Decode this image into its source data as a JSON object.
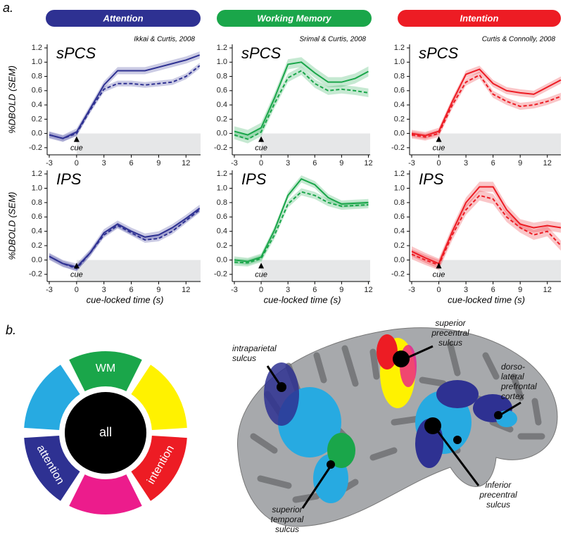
{
  "panel_labels": [
    "a.",
    "b."
  ],
  "columns": [
    {
      "title": "Attention",
      "color": "#2e3192",
      "citation": "Ikkai & Curtis, 2008"
    },
    {
      "title": "Working Memory",
      "color": "#1aa64a",
      "citation": "Srimal & Curtis, 2008"
    },
    {
      "title": "Intention",
      "color": "#ed1c24",
      "citation": "Curtis & Connolly, 2008"
    }
  ],
  "chart_data": [
    {
      "type": "line",
      "title": "sPCS",
      "annotation": "cue",
      "ylabel": "%DBOLD (SEM)",
      "x": [
        -3,
        -1.5,
        0,
        1.5,
        3,
        4.5,
        6,
        7.5,
        9,
        10.5,
        12,
        13.5
      ],
      "xlim": [
        -3,
        13.6
      ],
      "xticks": [
        -3,
        0,
        3,
        6,
        9,
        12
      ],
      "ylim": [
        -0.3,
        1.25
      ],
      "yticks": [
        -0.2,
        {
          "value": 0,
          "label": "0.0"
        },
        0.2,
        0.4,
        0.6,
        0.8,
        {
          "value": 1,
          "label": "1.0"
        },
        1.2
      ],
      "series": [
        {
          "color": "#2e3192",
          "style": "solid",
          "sem": 0.05,
          "values": [
            -0.02,
            -0.07,
            0.02,
            0.35,
            0.68,
            0.88,
            0.88,
            0.88,
            0.93,
            0.98,
            1.03,
            1.1
          ]
        },
        {
          "color": "#2e3192",
          "style": "dashed",
          "sem": 0.04,
          "values": [
            -0.02,
            -0.07,
            0.0,
            0.33,
            0.62,
            0.7,
            0.7,
            0.68,
            0.7,
            0.72,
            0.8,
            0.95
          ]
        }
      ]
    },
    {
      "type": "line",
      "title": "sPCS",
      "annotation": "cue",
      "x": [
        -3,
        -1.5,
        0,
        1.5,
        3,
        4.5,
        6,
        7.5,
        9,
        10.5,
        12
      ],
      "xlim": [
        -3,
        12.2
      ],
      "xticks": [
        -3,
        0,
        3,
        6,
        9,
        12
      ],
      "ylim": [
        -0.3,
        1.25
      ],
      "yticks": [
        -0.2,
        {
          "value": 0,
          "label": "0.0"
        },
        0.2,
        0.4,
        0.6,
        0.8,
        {
          "value": 1,
          "label": "1.0"
        },
        1.2
      ],
      "series": [
        {
          "color": "#1aa64a",
          "style": "solid",
          "sem": 0.07,
          "values": [
            0.03,
            -0.02,
            0.08,
            0.5,
            0.97,
            1.0,
            0.85,
            0.72,
            0.72,
            0.77,
            0.87
          ]
        },
        {
          "color": "#1aa64a",
          "style": "dashed",
          "sem": 0.06,
          "values": [
            -0.02,
            -0.08,
            0.02,
            0.42,
            0.78,
            0.88,
            0.7,
            0.6,
            0.62,
            0.6,
            0.57
          ]
        }
      ]
    },
    {
      "type": "line",
      "title": "sPCS",
      "annotation": "cue",
      "x": [
        -3,
        -1.5,
        0,
        1.5,
        3,
        4.5,
        6,
        7.5,
        9,
        10.5,
        12,
        13.5
      ],
      "xlim": [
        -3,
        13.5
      ],
      "xticks": [
        -3,
        0,
        3,
        6,
        9,
        12
      ],
      "ylim": [
        -0.3,
        1.25
      ],
      "yticks": [
        -0.2,
        {
          "value": 0,
          "label": "0.0"
        },
        0.2,
        0.4,
        0.6,
        0.8,
        {
          "value": 1,
          "label": "1.0"
        },
        1.2
      ],
      "series": [
        {
          "color": "#ed1c24",
          "style": "solid",
          "sem": 0.05,
          "values": [
            0.0,
            -0.03,
            0.03,
            0.45,
            0.83,
            0.9,
            0.7,
            0.6,
            0.57,
            0.55,
            0.65,
            0.75
          ]
        },
        {
          "color": "#ed1c24",
          "style": "dashed",
          "sem": 0.05,
          "values": [
            -0.02,
            -0.05,
            0.0,
            0.4,
            0.72,
            0.82,
            0.55,
            0.45,
            0.38,
            0.4,
            0.45,
            0.52
          ]
        }
      ]
    },
    {
      "type": "line",
      "title": "IPS",
      "annotation": "cue",
      "ylabel": "%DBOLD (SEM)",
      "xlabel": "cue-locked time (s)",
      "x": [
        -3,
        -1.5,
        0,
        1.5,
        3,
        4.5,
        6,
        7.5,
        9,
        10.5,
        12,
        13.5
      ],
      "xlim": [
        -3,
        13.6
      ],
      "xticks": [
        -3,
        0,
        3,
        6,
        9,
        12
      ],
      "ylim": [
        -0.3,
        1.25
      ],
      "yticks": [
        -0.2,
        {
          "value": 0,
          "label": "0.0"
        },
        0.2,
        0.4,
        0.6,
        0.8,
        {
          "value": 1,
          "label": "1.0"
        },
        1.2
      ],
      "series": [
        {
          "color": "#2e3192",
          "style": "solid",
          "sem": 0.05,
          "values": [
            0.05,
            -0.05,
            -0.1,
            0.1,
            0.38,
            0.5,
            0.4,
            0.32,
            0.35,
            0.45,
            0.58,
            0.72
          ]
        },
        {
          "color": "#2e3192",
          "style": "dashed",
          "sem": 0.04,
          "values": [
            0.05,
            -0.05,
            -0.12,
            0.1,
            0.35,
            0.48,
            0.38,
            0.28,
            0.3,
            0.4,
            0.55,
            0.7
          ]
        }
      ]
    },
    {
      "type": "line",
      "title": "IPS",
      "annotation": "cue",
      "xlabel": "cue-locked time (s)",
      "x": [
        -3,
        -1.5,
        0,
        1.5,
        3,
        4.5,
        6,
        7.5,
        9,
        10.5,
        12
      ],
      "xlim": [
        -3,
        12.2
      ],
      "xticks": [
        -3,
        0,
        3,
        6,
        9,
        12
      ],
      "ylim": [
        -0.3,
        1.25
      ],
      "yticks": [
        -0.2,
        {
          "value": 0,
          "label": "0.0"
        },
        0.2,
        0.4,
        0.6,
        0.8,
        {
          "value": 1,
          "label": "1.0"
        },
        1.2
      ],
      "series": [
        {
          "color": "#1aa64a",
          "style": "solid",
          "sem": 0.05,
          "values": [
            0.0,
            -0.02,
            0.04,
            0.42,
            0.9,
            1.13,
            1.05,
            0.87,
            0.78,
            0.79,
            0.8
          ]
        },
        {
          "color": "#1aa64a",
          "style": "dashed",
          "sem": 0.05,
          "values": [
            -0.03,
            -0.04,
            0.02,
            0.35,
            0.78,
            0.95,
            0.9,
            0.8,
            0.75,
            0.76,
            0.77
          ]
        }
      ]
    },
    {
      "type": "line",
      "title": "IPS",
      "annotation": "cue",
      "xlabel": "cue-locked time (s)",
      "x": [
        -3,
        -1.5,
        0,
        1.5,
        3,
        4.5,
        6,
        7.5,
        9,
        10.5,
        12,
        13.5
      ],
      "xlim": [
        -3,
        13.5
      ],
      "xticks": [
        -3,
        0,
        3,
        6,
        9,
        12
      ],
      "ylim": [
        -0.3,
        1.25
      ],
      "yticks": [
        -0.2,
        {
          "value": 0,
          "label": "0.0"
        },
        0.2,
        0.4,
        0.6,
        0.8,
        {
          "value": 1,
          "label": "1.0"
        },
        1.2
      ],
      "series": [
        {
          "color": "#ed1c24",
          "style": "solid",
          "sem": 0.07,
          "values": [
            0.12,
            0.03,
            -0.05,
            0.4,
            0.8,
            1.02,
            1.02,
            0.7,
            0.5,
            0.45,
            0.48,
            0.45
          ]
        },
        {
          "color": "#ed1c24",
          "style": "dashed",
          "sem": 0.07,
          "values": [
            0.08,
            0.0,
            -0.07,
            0.35,
            0.7,
            0.9,
            0.85,
            0.6,
            0.45,
            0.35,
            0.4,
            0.2
          ]
        }
      ]
    }
  ],
  "wheel": {
    "center": "all",
    "segments": [
      {
        "label": "WM",
        "color": "#1aa64a"
      },
      {
        "color": "#fff200"
      },
      {
        "label": "intention",
        "color": "#ed1c24"
      },
      {
        "color": "#ec1c8c"
      },
      {
        "label": "attention",
        "color": "#2e3192"
      },
      {
        "color": "#27aae1"
      }
    ]
  },
  "brain_labels": [
    {
      "lines": [
        "intraparietal",
        "sulcus"
      ]
    },
    {
      "lines": [
        "superior",
        "precentral",
        "sulcus"
      ]
    },
    {
      "lines": [
        "dorso-",
        "lateral",
        "prefrontal",
        "cortex"
      ]
    },
    {
      "lines": [
        "superior",
        "temporal",
        "sulcus"
      ]
    },
    {
      "lines": [
        "inferior",
        "precentral",
        "sulcus"
      ]
    }
  ]
}
